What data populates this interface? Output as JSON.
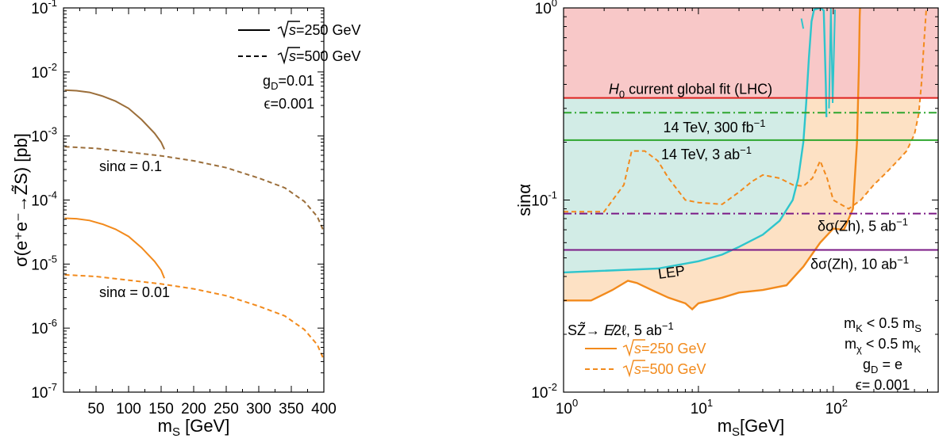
{
  "chart_data": [
    {
      "type": "line",
      "xlabel": "m_S [GeV]",
      "xlabel_main": "m",
      "xlabel_sub": "S",
      "xlabel_rest": " [GeV]",
      "ylabel": "σ(e⁺e⁻→Z̃S) [pb]",
      "xlim": [
        0,
        400
      ],
      "ylim": [
        1e-07,
        0.1
      ],
      "yscale": "log",
      "x_ticks": [
        50,
        100,
        150,
        200,
        250,
        300,
        350,
        400
      ],
      "x_tick_labels": [
        "50",
        "100",
        "150",
        "200",
        "250",
        "300",
        "350",
        "400"
      ],
      "y_ticks": [
        1e-07,
        1e-06,
        1e-05,
        0.0001,
        0.001,
        0.01,
        0.1
      ],
      "y_tick_exps": [
        "-7",
        "-6",
        "-5",
        "-4",
        "-3",
        "-2",
        "-1"
      ],
      "y_tick_base": "10",
      "legend": [
        {
          "label": "=250 GeV",
          "style": "solid"
        },
        {
          "label": "=500 GeV",
          "style": "dashed"
        }
      ],
      "legend_sqrt": "s",
      "params": [
        {
          "main": "g",
          "sub": "D",
          "rest": "=0.01"
        },
        {
          "main": "ϵ",
          "sub": "",
          "rest": "=0.001"
        }
      ],
      "annotations": [
        {
          "text": "sinα = 0.1",
          "color": "#9b6e3a"
        },
        {
          "text": "sinα = 0.01",
          "color": "#f28a1c"
        }
      ],
      "series": [
        {
          "color": "#9b6e3a",
          "style": "solid",
          "x": [
            2,
            20,
            40,
            60,
            80,
            100,
            120,
            140,
            150,
            155
          ],
          "y": [
            0.0052,
            0.0051,
            0.0048,
            0.0042,
            0.0035,
            0.0027,
            0.0018,
            0.0011,
            0.0008,
            0.00062
          ]
        },
        {
          "color": "#9b6e3a",
          "style": "dashed",
          "x": [
            2,
            50,
            100,
            150,
            200,
            250,
            300,
            340,
            370,
            390,
            400
          ],
          "y": [
            0.00068,
            0.00064,
            0.00056,
            0.00049,
            0.00041,
            0.00032,
            0.00022,
            0.000155,
            9.5e-05,
            5.5e-05,
            3.2e-05
          ]
        },
        {
          "color": "#f28a1c",
          "style": "solid",
          "x": [
            2,
            20,
            40,
            60,
            80,
            100,
            120,
            140,
            150,
            155
          ],
          "y": [
            5.2e-05,
            5.1e-05,
            4.8e-05,
            4.2e-05,
            3.5e-05,
            2.7e-05,
            1.8e-05,
            1.1e-05,
            8e-06,
            6e-06
          ]
        },
        {
          "color": "#f28a1c",
          "style": "dashed",
          "x": [
            2,
            50,
            100,
            150,
            200,
            250,
            300,
            340,
            370,
            390,
            400
          ],
          "y": [
            6.8e-06,
            6.4e-06,
            5.6e-06,
            4.9e-06,
            4.1e-06,
            3.2e-06,
            2.2e-06,
            1.55e-06,
            9.5e-07,
            5.5e-07,
            3.2e-07
          ]
        }
      ]
    },
    {
      "type": "line",
      "xlabel": "m_S[GeV]",
      "xlabel_main": "m",
      "xlabel_sub": "S",
      "xlabel_rest": "[GeV]",
      "ylabel": "sinα",
      "xscale": "log",
      "yscale": "log",
      "xlim": [
        1,
        600
      ],
      "ylim": [
        0.01,
        1
      ],
      "x_ticks": [
        1,
        10,
        100
      ],
      "x_tick_exps": [
        "0",
        "1",
        "2"
      ],
      "y_ticks": [
        0.01,
        0.1,
        1
      ],
      "y_tick_exps": [
        "-2",
        "-1",
        "0"
      ],
      "tick_base": "10",
      "colors": {
        "red_region": "#f8c8c8",
        "teal_region": "#d2ece6",
        "orange_region": "#fde1c4",
        "lhc": "#e0221f",
        "hl_lhc": "#2ea62e",
        "zh": "#7b1a86",
        "lep": "#2ec5cc",
        "orange": "#f28a1c"
      },
      "hlines": [
        {
          "y": 0.34,
          "color": "#e0221f",
          "style": "solid",
          "label_main": "H",
          "label_sub": "0",
          "label_rest": " current global fit (LHC)"
        },
        {
          "y": 0.285,
          "color": "#2ea62e",
          "style": "dashdot",
          "label": "14 TeV, 300 fb",
          "label_sup": "−1"
        },
        {
          "y": 0.205,
          "color": "#2ea62e",
          "style": "solid",
          "label": "14 TeV, 3 ab",
          "label_sup": "−1"
        },
        {
          "y": 0.085,
          "color": "#7b1a86",
          "style": "dashdot",
          "label": "δσ(Zh), 5 ab",
          "label_sup": "−1"
        },
        {
          "y": 0.055,
          "color": "#7b1a86",
          "style": "solid",
          "label": "δσ(Zh), 10 ab",
          "label_sup": "−1"
        }
      ],
      "lep": {
        "label": "LEP",
        "x": [
          1,
          5,
          10,
          15,
          20,
          30,
          40,
          50,
          55,
          60,
          63,
          66,
          69,
          72,
          76,
          80,
          85,
          88,
          89
        ],
        "y": [
          0.042,
          0.044,
          0.048,
          0.052,
          0.057,
          0.066,
          0.078,
          0.1,
          0.13,
          0.2,
          0.32,
          0.55,
          0.85,
          0.98,
          0.99,
          1.0,
          0.97,
          0.4,
          0.27
        ]
      },
      "orange_250": {
        "x": [
          1,
          1.6,
          2.3,
          3.0,
          3.5,
          4.5,
          6,
          8,
          9,
          10,
          15,
          20,
          30,
          45,
          60,
          80,
          100,
          120,
          140,
          150,
          155,
          157,
          158
        ],
        "y": [
          0.03,
          0.03,
          0.034,
          0.038,
          0.037,
          0.034,
          0.031,
          0.029,
          0.027,
          0.029,
          0.031,
          0.033,
          0.034,
          0.036,
          0.045,
          0.06,
          0.071,
          0.07,
          0.09,
          0.2,
          0.5,
          0.9,
          1.0
        ]
      },
      "orange_500": {
        "x": [
          1,
          2,
          2.8,
          3.2,
          4,
          5,
          6,
          8,
          10,
          15,
          20,
          25,
          30,
          40,
          50,
          60,
          70,
          80,
          90,
          100,
          130,
          160,
          200,
          250,
          300,
          350,
          400,
          430,
          450,
          470,
          490
        ],
        "y": [
          0.087,
          0.087,
          0.12,
          0.18,
          0.18,
          0.16,
          0.13,
          0.1,
          0.097,
          0.095,
          0.11,
          0.125,
          0.135,
          0.13,
          0.12,
          0.118,
          0.13,
          0.16,
          0.13,
          0.1,
          0.09,
          0.1,
          0.12,
          0.14,
          0.16,
          0.18,
          0.22,
          0.28,
          0.4,
          0.65,
          1.0
        ]
      },
      "annotations": [
        {
          "text_main": "S",
          "text_z": "Z̃",
          "text_rest": "→ ",
          "text_met": "E̸",
          "text_tail": "2ℓ, 5 ab",
          "sup": "−1"
        }
      ],
      "legend": [
        {
          "label": "=250 GeV",
          "style": "solid"
        },
        {
          "label": "=500 GeV",
          "style": "dashed"
        }
      ],
      "legend_sqrt": "s",
      "params": [
        {
          "line": [
            "m",
            "K",
            " < 0.5 m",
            "S"
          ]
        },
        {
          "line": [
            "m",
            "χ",
            " < 0.5 m",
            "K"
          ]
        },
        {
          "line": [
            "g",
            "D",
            " = e",
            ""
          ]
        },
        {
          "line": [
            "ϵ",
            "",
            "= 0.001",
            ""
          ]
        }
      ]
    }
  ]
}
